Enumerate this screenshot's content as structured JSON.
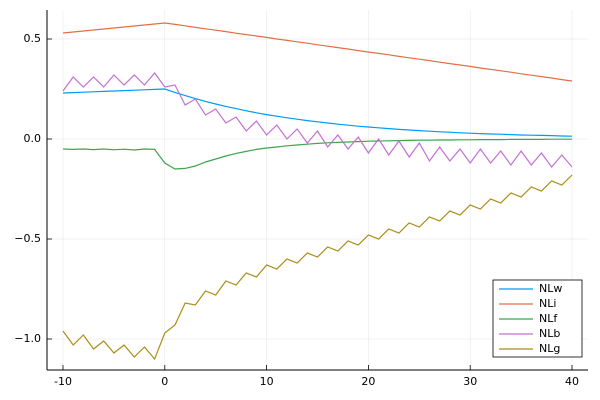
{
  "chart_data": {
    "type": "line",
    "x": [
      -10,
      -9,
      -8,
      -7,
      -6,
      -5,
      -4,
      -3,
      -2,
      -1,
      0,
      1,
      2,
      3,
      4,
      5,
      6,
      7,
      8,
      9,
      10,
      11,
      12,
      13,
      14,
      15,
      16,
      17,
      18,
      19,
      20,
      21,
      22,
      23,
      24,
      25,
      26,
      27,
      28,
      29,
      30,
      31,
      32,
      33,
      34,
      35,
      36,
      37,
      38,
      39,
      40
    ],
    "series": [
      {
        "name": "NLw",
        "color": "#009af9",
        "values": [
          0.23,
          0.232,
          0.234,
          0.236,
          0.238,
          0.24,
          0.242,
          0.244,
          0.246,
          0.248,
          0.25,
          0.233,
          0.217,
          0.202,
          0.188,
          0.175,
          0.163,
          0.152,
          0.141,
          0.131,
          0.122,
          0.114,
          0.106,
          0.099,
          0.092,
          0.086,
          0.08,
          0.074,
          0.069,
          0.064,
          0.06,
          0.056,
          0.052,
          0.048,
          0.045,
          0.042,
          0.039,
          0.036,
          0.034,
          0.031,
          0.029,
          0.027,
          0.025,
          0.024,
          0.022,
          0.02,
          0.019,
          0.018,
          0.017,
          0.015,
          0.014
        ]
      },
      {
        "name": "NLi",
        "color": "#e26f46",
        "values": [
          0.53,
          0.535,
          0.54,
          0.545,
          0.55,
          0.555,
          0.56,
          0.565,
          0.57,
          0.575,
          0.58,
          0.573,
          0.566,
          0.558,
          0.551,
          0.544,
          0.537,
          0.529,
          0.522,
          0.515,
          0.508,
          0.5,
          0.493,
          0.486,
          0.479,
          0.471,
          0.464,
          0.457,
          0.45,
          0.442,
          0.435,
          0.428,
          0.421,
          0.413,
          0.406,
          0.399,
          0.392,
          0.384,
          0.377,
          0.37,
          0.363,
          0.355,
          0.348,
          0.341,
          0.334,
          0.326,
          0.319,
          0.312,
          0.305,
          0.297,
          0.29
        ]
      },
      {
        "name": "NLf",
        "color": "#3ea44e",
        "values": [
          -0.05,
          -0.052,
          -0.05,
          -0.053,
          -0.05,
          -0.054,
          -0.051,
          -0.055,
          -0.05,
          -0.052,
          -0.12,
          -0.15,
          -0.147,
          -0.135,
          -0.115,
          -0.1,
          -0.085,
          -0.072,
          -0.062,
          -0.052,
          -0.045,
          -0.04,
          -0.034,
          -0.03,
          -0.026,
          -0.022,
          -0.019,
          -0.017,
          -0.015,
          -0.013,
          -0.011,
          -0.01,
          -0.009,
          -0.008,
          -0.007,
          -0.006,
          -0.006,
          -0.005,
          -0.005,
          -0.004,
          -0.004,
          -0.003,
          -0.003,
          -0.003,
          -0.002,
          -0.002,
          -0.002,
          -0.002,
          -0.001,
          -0.001,
          -0.001
        ]
      },
      {
        "name": "NLb",
        "color": "#c271d2",
        "values": [
          0.24,
          0.31,
          0.26,
          0.31,
          0.26,
          0.32,
          0.27,
          0.32,
          0.27,
          0.33,
          0.26,
          0.27,
          0.17,
          0.2,
          0.12,
          0.15,
          0.08,
          0.11,
          0.04,
          0.09,
          0.02,
          0.07,
          0.0,
          0.05,
          -0.02,
          0.04,
          -0.04,
          0.02,
          -0.05,
          0.01,
          -0.07,
          0.0,
          -0.08,
          -0.01,
          -0.09,
          -0.02,
          -0.11,
          -0.04,
          -0.11,
          -0.05,
          -0.12,
          -0.05,
          -0.12,
          -0.06,
          -0.13,
          -0.06,
          -0.13,
          -0.07,
          -0.14,
          -0.08,
          -0.14
        ]
      },
      {
        "name": "NLg",
        "color": "#ac8d18",
        "values": [
          -0.96,
          -1.03,
          -0.98,
          -1.05,
          -1.01,
          -1.07,
          -1.03,
          -1.09,
          -1.04,
          -1.1,
          -0.97,
          -0.93,
          -0.82,
          -0.83,
          -0.76,
          -0.78,
          -0.71,
          -0.73,
          -0.67,
          -0.69,
          -0.63,
          -0.65,
          -0.6,
          -0.62,
          -0.57,
          -0.59,
          -0.54,
          -0.56,
          -0.51,
          -0.53,
          -0.48,
          -0.5,
          -0.45,
          -0.47,
          -0.42,
          -0.44,
          -0.39,
          -0.41,
          -0.36,
          -0.38,
          -0.33,
          -0.35,
          -0.3,
          -0.32,
          -0.27,
          -0.29,
          -0.24,
          -0.26,
          -0.21,
          -0.23,
          -0.18
        ]
      }
    ],
    "xlim": [
      -11.57,
      41.57
    ],
    "ylim": [
      -1.155,
      0.645
    ],
    "xticks": [
      -10,
      0,
      10,
      20,
      30,
      40
    ],
    "yticks": [
      {
        "value": -1.0,
        "label": "−1.0"
      },
      {
        "value": -0.5,
        "label": "−0.5"
      },
      {
        "value": 0.0,
        "label": "0.0"
      },
      {
        "value": 0.5,
        "label": "0.5"
      }
    ],
    "grid": true,
    "legend": "bottom-right"
  }
}
